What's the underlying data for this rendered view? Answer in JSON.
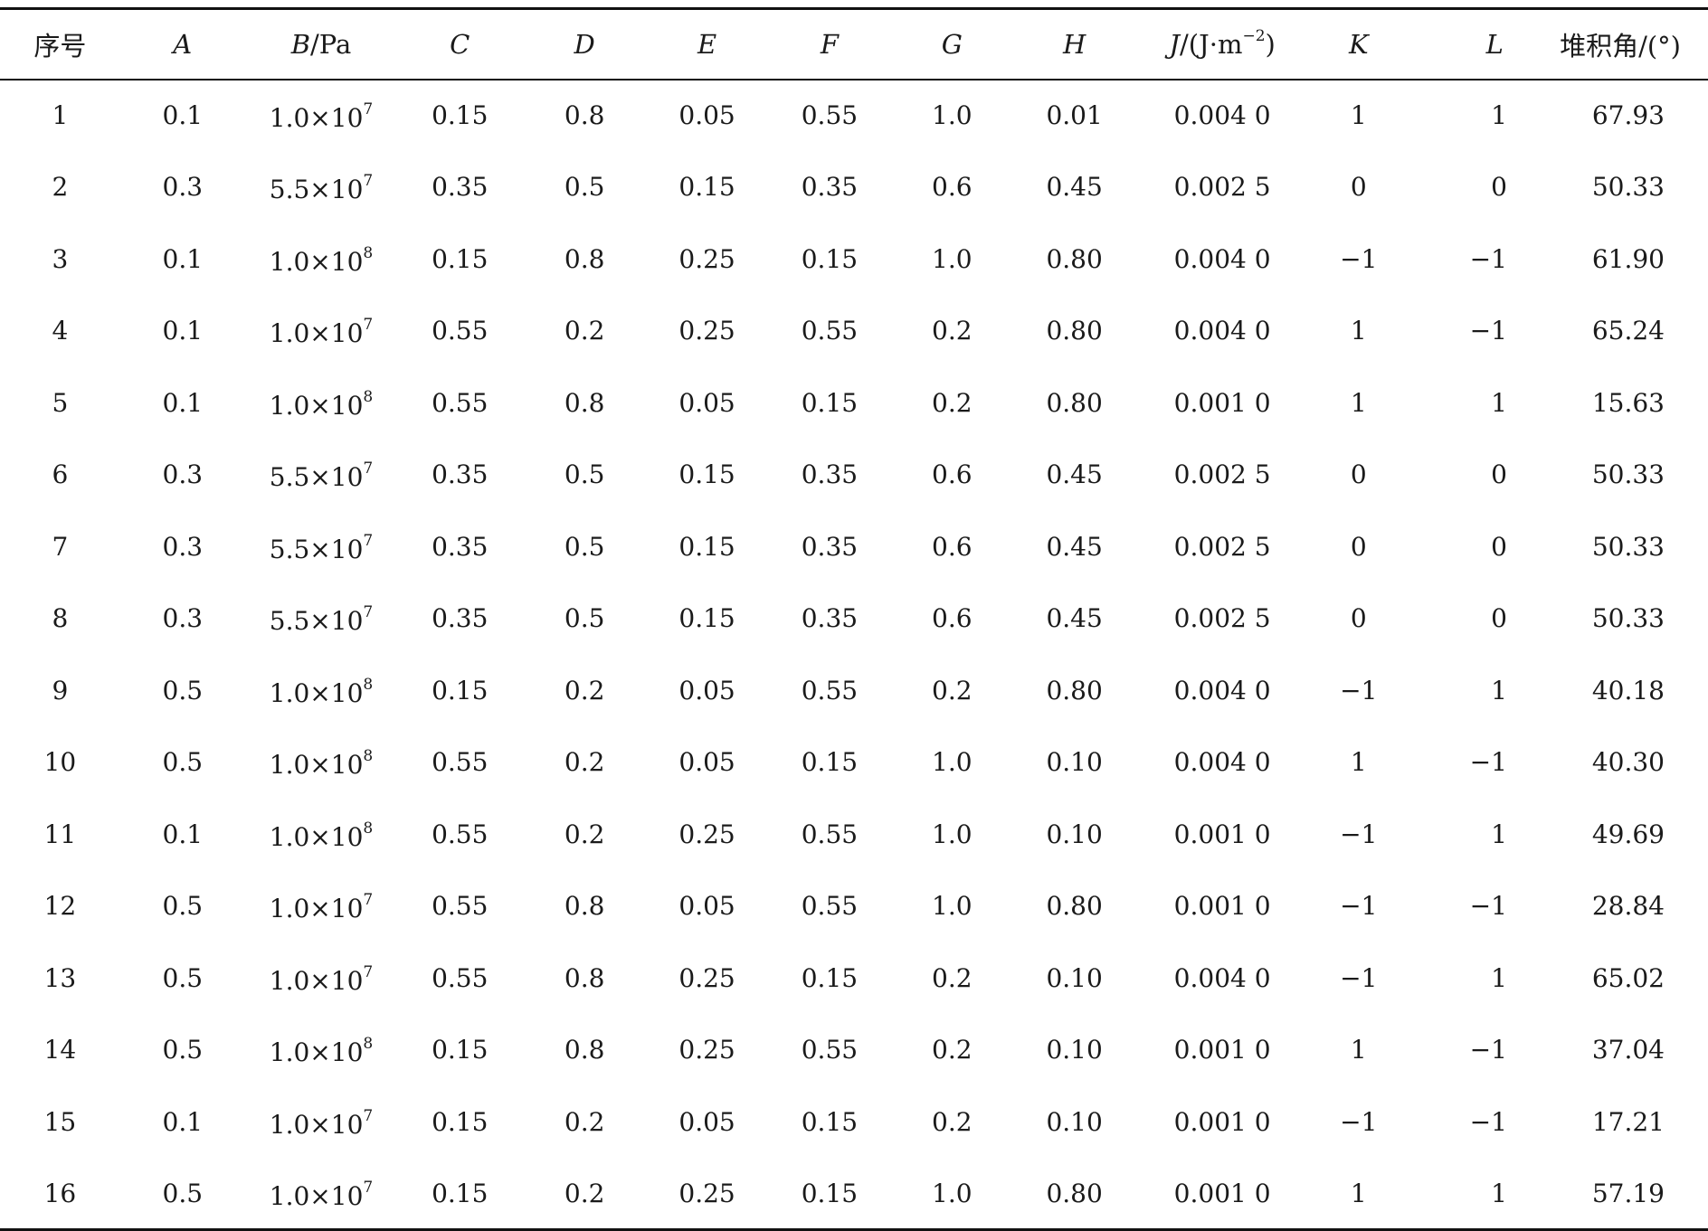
{
  "table": {
    "headers": {
      "index": "序号",
      "A": "A",
      "B_var": "B",
      "B_unit": "/Pa",
      "C": "C",
      "D": "D",
      "E": "E",
      "F": "F",
      "G": "G",
      "H": "H",
      "J_var": "J",
      "J_unit_pre": "/(J·m",
      "J_unit_exp": "−2",
      "J_unit_post": ")",
      "K": "K",
      "L": "L",
      "angle": "堆积角/(°)"
    },
    "rows": [
      {
        "idx": "1",
        "A": "0.1",
        "B_mant": "1.0×10",
        "B_exp": "7",
        "C": "0.15",
        "D": "0.8",
        "E": "0.05",
        "F": "0.55",
        "G": "1.0",
        "H": "0.01",
        "J": "0.004 0",
        "K": "1",
        "L": "1",
        "angle": "67.93"
      },
      {
        "idx": "2",
        "A": "0.3",
        "B_mant": "5.5×10",
        "B_exp": "7",
        "C": "0.35",
        "D": "0.5",
        "E": "0.15",
        "F": "0.35",
        "G": "0.6",
        "H": "0.45",
        "J": "0.002 5",
        "K": "0",
        "L": "0",
        "angle": "50.33"
      },
      {
        "idx": "3",
        "A": "0.1",
        "B_mant": "1.0×10",
        "B_exp": "8",
        "C": "0.15",
        "D": "0.8",
        "E": "0.25",
        "F": "0.15",
        "G": "1.0",
        "H": "0.80",
        "J": "0.004 0",
        "K": "−1",
        "L": "−1",
        "angle": "61.90"
      },
      {
        "idx": "4",
        "A": "0.1",
        "B_mant": "1.0×10",
        "B_exp": "7",
        "C": "0.55",
        "D": "0.2",
        "E": "0.25",
        "F": "0.55",
        "G": "0.2",
        "H": "0.80",
        "J": "0.004 0",
        "K": "1",
        "L": "−1",
        "angle": "65.24"
      },
      {
        "idx": "5",
        "A": "0.1",
        "B_mant": "1.0×10",
        "B_exp": "8",
        "C": "0.55",
        "D": "0.8",
        "E": "0.05",
        "F": "0.15",
        "G": "0.2",
        "H": "0.80",
        "J": "0.001 0",
        "K": "1",
        "L": "1",
        "angle": "15.63"
      },
      {
        "idx": "6",
        "A": "0.3",
        "B_mant": "5.5×10",
        "B_exp": "7",
        "C": "0.35",
        "D": "0.5",
        "E": "0.15",
        "F": "0.35",
        "G": "0.6",
        "H": "0.45",
        "J": "0.002 5",
        "K": "0",
        "L": "0",
        "angle": "50.33"
      },
      {
        "idx": "7",
        "A": "0.3",
        "B_mant": "5.5×10",
        "B_exp": "7",
        "C": "0.35",
        "D": "0.5",
        "E": "0.15",
        "F": "0.35",
        "G": "0.6",
        "H": "0.45",
        "J": "0.002 5",
        "K": "0",
        "L": "0",
        "angle": "50.33"
      },
      {
        "idx": "8",
        "A": "0.3",
        "B_mant": "5.5×10",
        "B_exp": "7",
        "C": "0.35",
        "D": "0.5",
        "E": "0.15",
        "F": "0.35",
        "G": "0.6",
        "H": "0.45",
        "J": "0.002 5",
        "K": "0",
        "L": "0",
        "angle": "50.33"
      },
      {
        "idx": "9",
        "A": "0.5",
        "B_mant": "1.0×10",
        "B_exp": "8",
        "C": "0.15",
        "D": "0.2",
        "E": "0.05",
        "F": "0.55",
        "G": "0.2",
        "H": "0.80",
        "J": "0.004 0",
        "K": "−1",
        "L": "1",
        "angle": "40.18"
      },
      {
        "idx": "10",
        "A": "0.5",
        "B_mant": "1.0×10",
        "B_exp": "8",
        "C": "0.55",
        "D": "0.2",
        "E": "0.05",
        "F": "0.15",
        "G": "1.0",
        "H": "0.10",
        "J": "0.004 0",
        "K": "1",
        "L": "−1",
        "angle": "40.30"
      },
      {
        "idx": "11",
        "A": "0.1",
        "B_mant": "1.0×10",
        "B_exp": "8",
        "C": "0.55",
        "D": "0.2",
        "E": "0.25",
        "F": "0.55",
        "G": "1.0",
        "H": "0.10",
        "J": "0.001 0",
        "K": "−1",
        "L": "1",
        "angle": "49.69"
      },
      {
        "idx": "12",
        "A": "0.5",
        "B_mant": "1.0×10",
        "B_exp": "7",
        "C": "0.55",
        "D": "0.8",
        "E": "0.05",
        "F": "0.55",
        "G": "1.0",
        "H": "0.80",
        "J": "0.001 0",
        "K": "−1",
        "L": "−1",
        "angle": "28.84"
      },
      {
        "idx": "13",
        "A": "0.5",
        "B_mant": "1.0×10",
        "B_exp": "7",
        "C": "0.55",
        "D": "0.8",
        "E": "0.25",
        "F": "0.15",
        "G": "0.2",
        "H": "0.10",
        "J": "0.004 0",
        "K": "−1",
        "L": "1",
        "angle": "65.02"
      },
      {
        "idx": "14",
        "A": "0.5",
        "B_mant": "1.0×10",
        "B_exp": "8",
        "C": "0.15",
        "D": "0.8",
        "E": "0.25",
        "F": "0.55",
        "G": "0.2",
        "H": "0.10",
        "J": "0.001 0",
        "K": "1",
        "L": "−1",
        "angle": "37.04"
      },
      {
        "idx": "15",
        "A": "0.1",
        "B_mant": "1.0×10",
        "B_exp": "7",
        "C": "0.15",
        "D": "0.2",
        "E": "0.05",
        "F": "0.15",
        "G": "0.2",
        "H": "0.10",
        "J": "0.001 0",
        "K": "−1",
        "L": "−1",
        "angle": "17.21"
      },
      {
        "idx": "16",
        "A": "0.5",
        "B_mant": "1.0×10",
        "B_exp": "7",
        "C": "0.15",
        "D": "0.2",
        "E": "0.25",
        "F": "0.15",
        "G": "1.0",
        "H": "0.80",
        "J": "0.001 0",
        "K": "1",
        "L": "1",
        "angle": "57.19"
      }
    ]
  }
}
